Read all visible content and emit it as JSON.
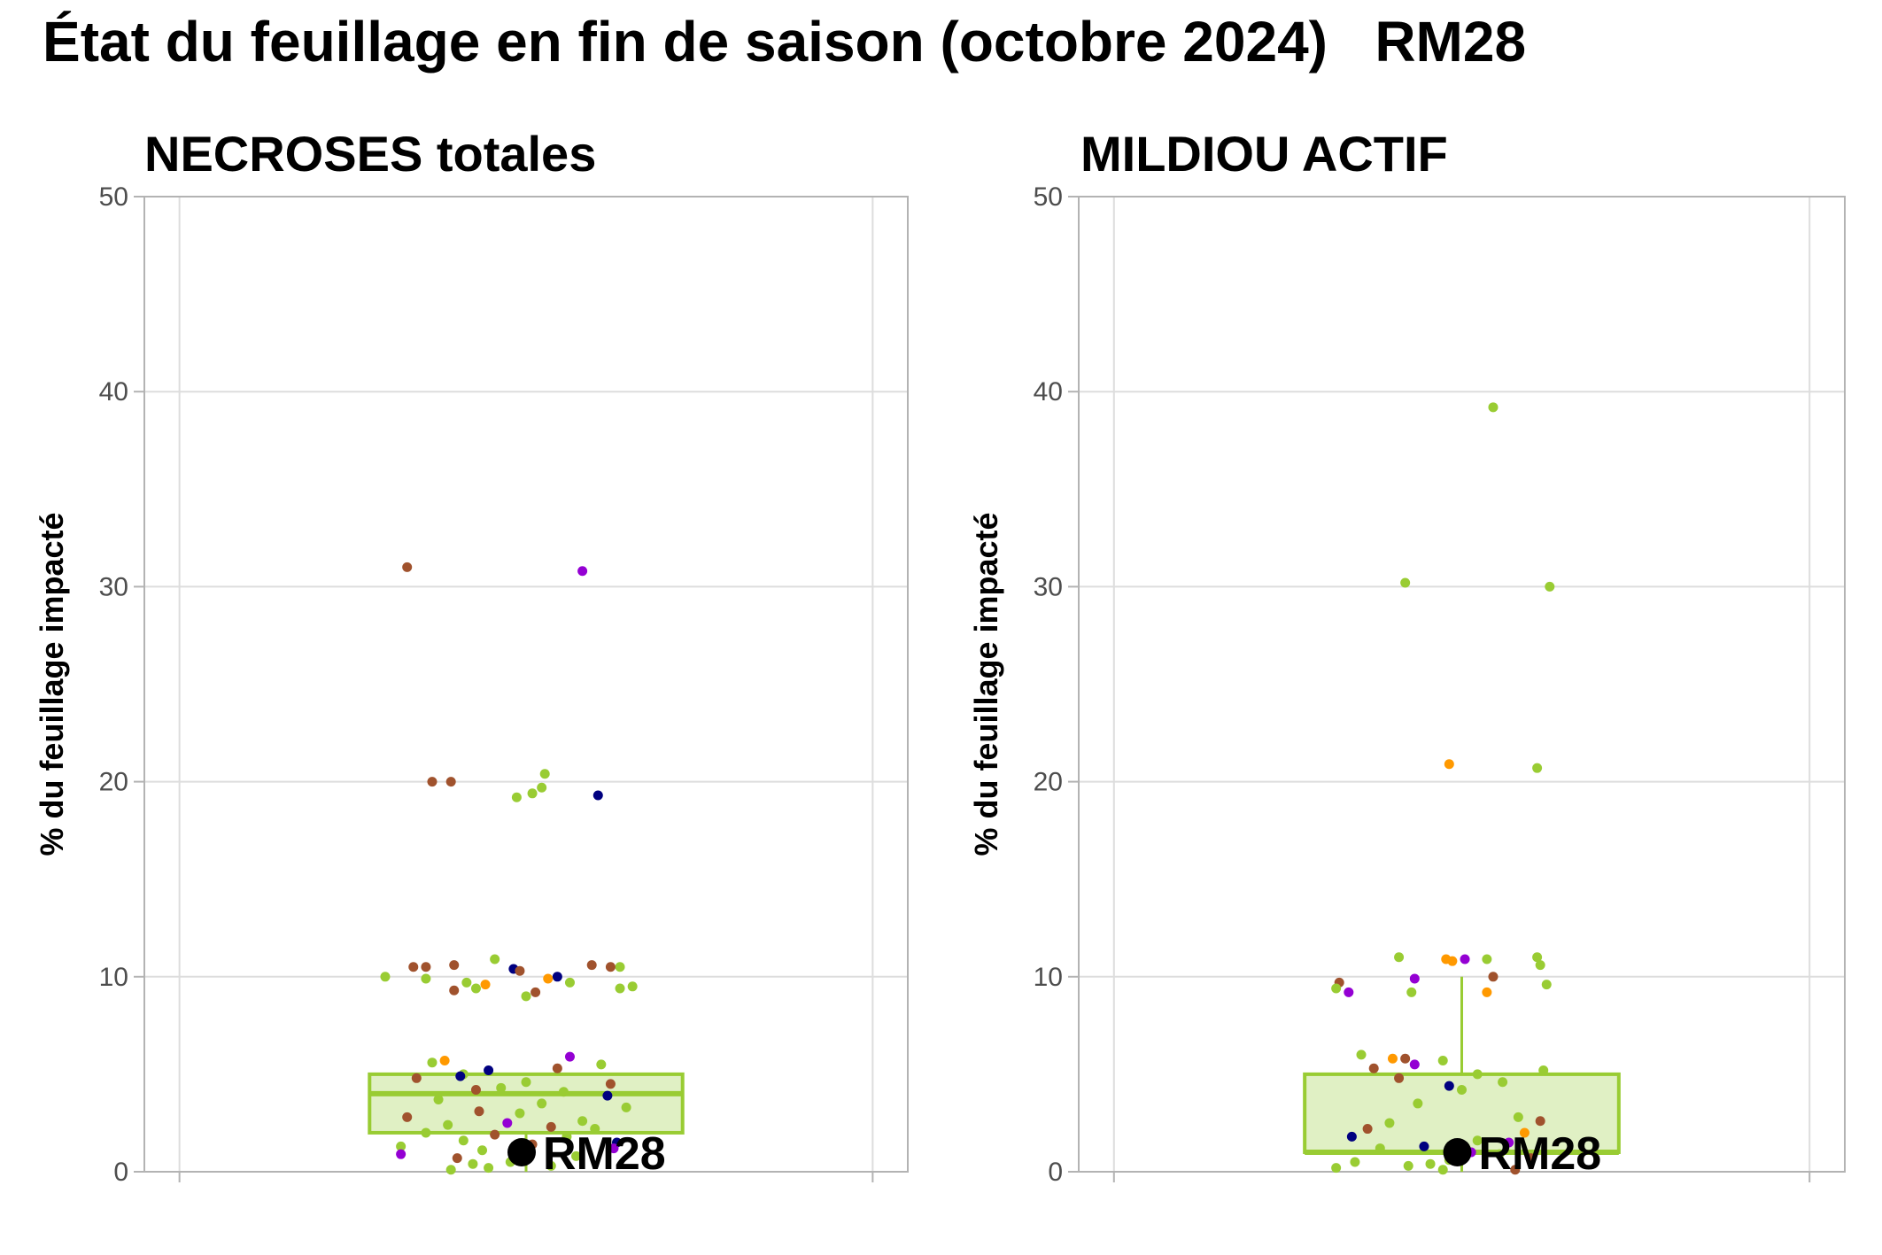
{
  "page": {
    "title": "État du feuillage en fin de saison (octobre 2024)   RM28"
  },
  "colors": {
    "box_stroke": "#99cc33",
    "box_fill": "#e0f0c4",
    "median": "#99cc33",
    "highlight_point": "#000000",
    "grid": "#dddddd",
    "frame": "#b3b3b3",
    "tick_text": "#4d4d4d",
    "point_palette": [
      "#99cc33",
      "#a0522d",
      "#ff9900",
      "#9400d3",
      "#000080"
    ]
  },
  "chart_data": [
    {
      "type": "scatter",
      "subtype": "box-with-jitter",
      "title": "NECROSES totales",
      "xlabel": "",
      "ylabel": "% du feuillage impacté",
      "ylim": [
        0,
        50
      ],
      "yticks": [
        0,
        10,
        20,
        30,
        40,
        50
      ],
      "grid": true,
      "box": {
        "q1": 2,
        "median": 4,
        "q3": 5,
        "whisker_low": 0,
        "whisker_high": 5
      },
      "highlight": {
        "label": "RM28",
        "value": 1
      },
      "points": [
        {
          "y": 31,
          "c": 1,
          "j": 0.12
        },
        {
          "y": 30.8,
          "c": 3,
          "j": 0.68
        },
        {
          "y": 20,
          "c": 1,
          "j": 0.2
        },
        {
          "y": 20,
          "c": 1,
          "j": 0.26
        },
        {
          "y": 20.4,
          "c": 0,
          "j": 0.56
        },
        {
          "y": 19.7,
          "c": 0,
          "j": 0.55
        },
        {
          "y": 19.4,
          "c": 0,
          "j": 0.52
        },
        {
          "y": 19.2,
          "c": 0,
          "j": 0.47
        },
        {
          "y": 19.3,
          "c": 4,
          "j": 0.73
        },
        {
          "y": 10.9,
          "c": 0,
          "j": 0.4
        },
        {
          "y": 10.6,
          "c": 1,
          "j": 0.27
        },
        {
          "y": 10.5,
          "c": 1,
          "j": 0.14
        },
        {
          "y": 10.5,
          "c": 1,
          "j": 0.18
        },
        {
          "y": 10.4,
          "c": 4,
          "j": 0.46
        },
        {
          "y": 10.3,
          "c": 1,
          "j": 0.48
        },
        {
          "y": 10.6,
          "c": 1,
          "j": 0.71
        },
        {
          "y": 10.5,
          "c": 0,
          "j": 0.8
        },
        {
          "y": 10.5,
          "c": 1,
          "j": 0.77
        },
        {
          "y": 10,
          "c": 4,
          "j": 0.6
        },
        {
          "y": 9.9,
          "c": 0,
          "j": 0.18
        },
        {
          "y": 10,
          "c": 0,
          "j": 0.05
        },
        {
          "y": 9.7,
          "c": 0,
          "j": 0.31
        },
        {
          "y": 9.6,
          "c": 2,
          "j": 0.37
        },
        {
          "y": 9.9,
          "c": 2,
          "j": 0.57
        },
        {
          "y": 9.3,
          "c": 1,
          "j": 0.27
        },
        {
          "y": 9.4,
          "c": 0,
          "j": 0.34
        },
        {
          "y": 9.2,
          "c": 1,
          "j": 0.53
        },
        {
          "y": 9,
          "c": 0,
          "j": 0.5
        },
        {
          "y": 9.4,
          "c": 0,
          "j": 0.8
        },
        {
          "y": 9.5,
          "c": 0,
          "j": 0.84
        },
        {
          "y": 9.7,
          "c": 0,
          "j": 0.64
        },
        {
          "y": 5.9,
          "c": 3,
          "j": 0.64
        },
        {
          "y": 5.7,
          "c": 2,
          "j": 0.24
        },
        {
          "y": 5.6,
          "c": 0,
          "j": 0.2
        },
        {
          "y": 5.5,
          "c": 0,
          "j": 0.74
        },
        {
          "y": 5.2,
          "c": 4,
          "j": 0.38
        },
        {
          "y": 5.3,
          "c": 1,
          "j": 0.6
        },
        {
          "y": 5,
          "c": 0,
          "j": 0.3
        },
        {
          "y": 4.9,
          "c": 4,
          "j": 0.29
        },
        {
          "y": 4.8,
          "c": 1,
          "j": 0.15
        },
        {
          "y": 4.6,
          "c": 0,
          "j": 0.5
        },
        {
          "y": 4.5,
          "c": 1,
          "j": 0.77
        },
        {
          "y": 4.3,
          "c": 0,
          "j": 0.42
        },
        {
          "y": 4.2,
          "c": 1,
          "j": 0.34
        },
        {
          "y": 4.1,
          "c": 0,
          "j": 0.62
        },
        {
          "y": 3.9,
          "c": 4,
          "j": 0.76
        },
        {
          "y": 3.7,
          "c": 0,
          "j": 0.22
        },
        {
          "y": 3.5,
          "c": 0,
          "j": 0.55
        },
        {
          "y": 3.3,
          "c": 0,
          "j": 0.82
        },
        {
          "y": 3.1,
          "c": 1,
          "j": 0.35
        },
        {
          "y": 3,
          "c": 0,
          "j": 0.48
        },
        {
          "y": 2.8,
          "c": 1,
          "j": 0.12
        },
        {
          "y": 2.6,
          "c": 0,
          "j": 0.68
        },
        {
          "y": 2.5,
          "c": 3,
          "j": 0.44
        },
        {
          "y": 2.4,
          "c": 0,
          "j": 0.25
        },
        {
          "y": 2.3,
          "c": 1,
          "j": 0.58
        },
        {
          "y": 2.2,
          "c": 0,
          "j": 0.72
        },
        {
          "y": 2,
          "c": 0,
          "j": 0.18
        },
        {
          "y": 1.9,
          "c": 1,
          "j": 0.4
        },
        {
          "y": 1.8,
          "c": 0,
          "j": 0.63
        },
        {
          "y": 1.6,
          "c": 0,
          "j": 0.3
        },
        {
          "y": 1.5,
          "c": 4,
          "j": 0.79
        },
        {
          "y": 1.4,
          "c": 1,
          "j": 0.52
        },
        {
          "y": 1.3,
          "c": 0,
          "j": 0.1
        },
        {
          "y": 1.2,
          "c": 3,
          "j": 0.78
        },
        {
          "y": 1.1,
          "c": 0,
          "j": 0.36
        },
        {
          "y": 0.9,
          "c": 3,
          "j": 0.1
        },
        {
          "y": 0.8,
          "c": 0,
          "j": 0.66
        },
        {
          "y": 0.7,
          "c": 1,
          "j": 0.28
        },
        {
          "y": 0.5,
          "c": 0,
          "j": 0.45
        },
        {
          "y": 0.4,
          "c": 0,
          "j": 0.33
        },
        {
          "y": 0.3,
          "c": 0,
          "j": 0.58
        },
        {
          "y": 0.2,
          "c": 0,
          "j": 0.38
        },
        {
          "y": 0.1,
          "c": 0,
          "j": 0.26
        }
      ]
    },
    {
      "type": "scatter",
      "subtype": "box-with-jitter",
      "title": "MILDIOU ACTIF",
      "xlabel": "",
      "ylabel": "% du feuillage impacté",
      "ylim": [
        0,
        50
      ],
      "yticks": [
        0,
        10,
        20,
        30,
        40,
        50
      ],
      "grid": true,
      "box": {
        "q1": 1,
        "median": 1,
        "q3": 5,
        "whisker_low": 0,
        "whisker_high": 10
      },
      "highlight": {
        "label": "RM28",
        "value": 1
      },
      "points": [
        {
          "y": 39.2,
          "c": 0,
          "j": 0.6
        },
        {
          "y": 30.2,
          "c": 0,
          "j": 0.32
        },
        {
          "y": 30,
          "c": 0,
          "j": 0.78
        },
        {
          "y": 20.9,
          "c": 2,
          "j": 0.46
        },
        {
          "y": 20.7,
          "c": 0,
          "j": 0.74
        },
        {
          "y": 11,
          "c": 0,
          "j": 0.3
        },
        {
          "y": 10.9,
          "c": 2,
          "j": 0.45
        },
        {
          "y": 10.8,
          "c": 2,
          "j": 0.47
        },
        {
          "y": 10.9,
          "c": 3,
          "j": 0.51
        },
        {
          "y": 10.9,
          "c": 0,
          "j": 0.58
        },
        {
          "y": 11,
          "c": 0,
          "j": 0.74
        },
        {
          "y": 10.6,
          "c": 0,
          "j": 0.75
        },
        {
          "y": 10,
          "c": 1,
          "j": 0.6
        },
        {
          "y": 9.9,
          "c": 3,
          "j": 0.35
        },
        {
          "y": 9.7,
          "c": 1,
          "j": 0.11
        },
        {
          "y": 9.6,
          "c": 0,
          "j": 0.77
        },
        {
          "y": 9.4,
          "c": 0,
          "j": 0.1
        },
        {
          "y": 9.2,
          "c": 3,
          "j": 0.14
        },
        {
          "y": 9.2,
          "c": 0,
          "j": 0.34
        },
        {
          "y": 9.2,
          "c": 2,
          "j": 0.58
        },
        {
          "y": 6,
          "c": 0,
          "j": 0.18
        },
        {
          "y": 5.8,
          "c": 2,
          "j": 0.28
        },
        {
          "y": 5.8,
          "c": 1,
          "j": 0.32
        },
        {
          "y": 5.7,
          "c": 0,
          "j": 0.44
        },
        {
          "y": 5.5,
          "c": 3,
          "j": 0.35
        },
        {
          "y": 5.3,
          "c": 1,
          "j": 0.22
        },
        {
          "y": 5.2,
          "c": 0,
          "j": 0.76
        },
        {
          "y": 5,
          "c": 0,
          "j": 0.55
        },
        {
          "y": 4.8,
          "c": 1,
          "j": 0.3
        },
        {
          "y": 4.6,
          "c": 0,
          "j": 0.63
        },
        {
          "y": 4.4,
          "c": 4,
          "j": 0.46
        },
        {
          "y": 4.2,
          "c": 0,
          "j": 0.5
        },
        {
          "y": 3.5,
          "c": 0,
          "j": 0.36
        },
        {
          "y": 2.8,
          "c": 0,
          "j": 0.68
        },
        {
          "y": 2.6,
          "c": 1,
          "j": 0.75
        },
        {
          "y": 2.5,
          "c": 0,
          "j": 0.27
        },
        {
          "y": 2.2,
          "c": 1,
          "j": 0.2
        },
        {
          "y": 2,
          "c": 2,
          "j": 0.7
        },
        {
          "y": 1.8,
          "c": 4,
          "j": 0.15
        },
        {
          "y": 1.6,
          "c": 0,
          "j": 0.55
        },
        {
          "y": 1.5,
          "c": 3,
          "j": 0.65
        },
        {
          "y": 1.3,
          "c": 4,
          "j": 0.38
        },
        {
          "y": 1.2,
          "c": 0,
          "j": 0.24
        },
        {
          "y": 1,
          "c": 3,
          "j": 0.53
        },
        {
          "y": 0.9,
          "c": 0,
          "j": 0.62
        },
        {
          "y": 0.7,
          "c": 1,
          "j": 0.72
        },
        {
          "y": 0.6,
          "c": 0,
          "j": 0.46
        },
        {
          "y": 0.5,
          "c": 0,
          "j": 0.16
        },
        {
          "y": 0.4,
          "c": 0,
          "j": 0.4
        },
        {
          "y": 0.3,
          "c": 0,
          "j": 0.33
        },
        {
          "y": 0.2,
          "c": 0,
          "j": 0.1
        },
        {
          "y": 0.1,
          "c": 0,
          "j": 0.44
        },
        {
          "y": 0.1,
          "c": 1,
          "j": 0.67
        }
      ]
    }
  ]
}
